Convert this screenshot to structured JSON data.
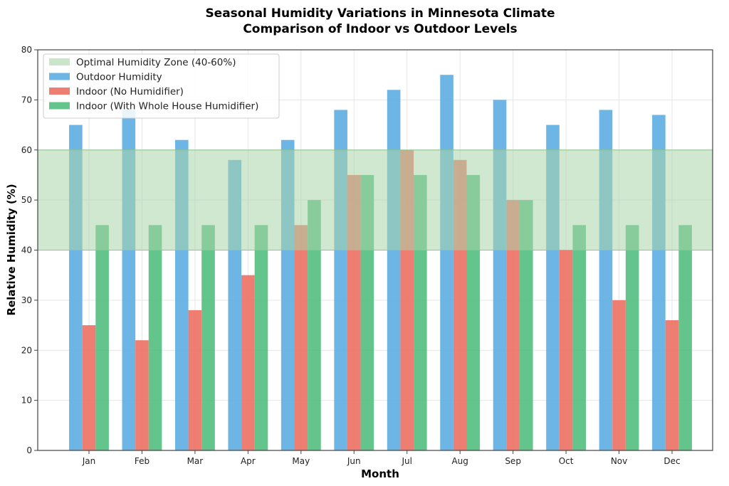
{
  "chart_data": {
    "type": "bar",
    "title": "Seasonal Humidity Variations in Minnesota Climate",
    "subtitle": "Comparison of Indoor vs Outdoor Levels",
    "xlabel": "Month",
    "ylabel": "Relative Humidity (%)",
    "ylim": [
      0,
      80
    ],
    "yticks": [
      0,
      10,
      20,
      30,
      40,
      50,
      60,
      70,
      80
    ],
    "grid": true,
    "legend_position": "top-left",
    "categories": [
      "Jan",
      "Feb",
      "Mar",
      "Apr",
      "May",
      "Jun",
      "Jul",
      "Aug",
      "Sep",
      "Oct",
      "Nov",
      "Dec"
    ],
    "band": {
      "name": "Optimal Humidity Zone (40-60%)",
      "from": 40,
      "to": 60,
      "color": "#a9d4a9"
    },
    "series": [
      {
        "name": "Outdoor Humidity",
        "color": "#5dade2",
        "values": [
          65,
          68,
          62,
          58,
          62,
          68,
          72,
          75,
          70,
          65,
          68,
          67
        ]
      },
      {
        "name": "Indoor (No Humidifier)",
        "color": "#ec7063",
        "values": [
          25,
          22,
          28,
          35,
          45,
          55,
          60,
          58,
          50,
          40,
          30,
          26
        ]
      },
      {
        "name": "Indoor (With Whole House Humidifier)",
        "color": "#52be80",
        "values": [
          45,
          45,
          45,
          45,
          50,
          55,
          55,
          55,
          50,
          45,
          45,
          45
        ]
      }
    ]
  }
}
